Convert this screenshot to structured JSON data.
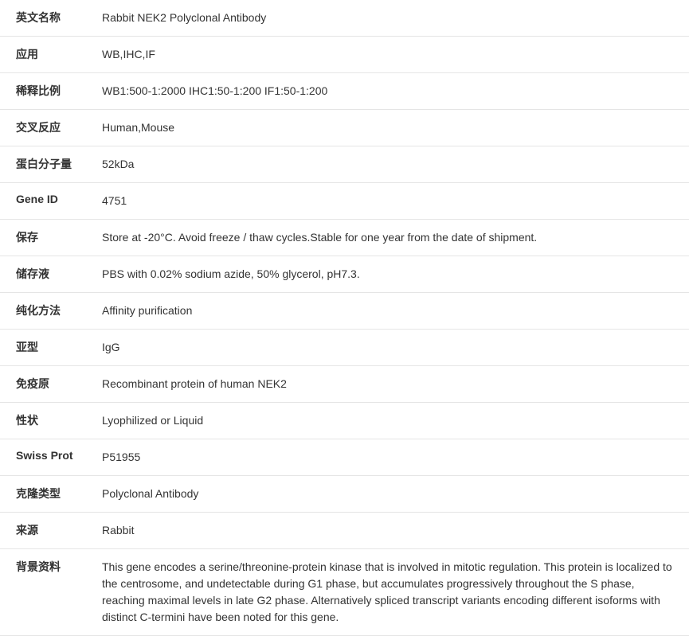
{
  "table": {
    "label_color": "#333333",
    "value_color": "#333333",
    "border_color": "#e5e5e5",
    "background_color": "#ffffff",
    "font_size": 14,
    "label_weight": "bold",
    "rows": [
      {
        "label": "英文名称",
        "value": "Rabbit NEK2 Polyclonal Antibody"
      },
      {
        "label": "应用",
        "value": "WB,IHC,IF"
      },
      {
        "label": "稀释比例",
        "value": "WB1:500-1:2000 IHC1:50-1:200 IF1:50-1:200"
      },
      {
        "label": "交叉反应",
        "value": "Human,Mouse"
      },
      {
        "label": "蛋白分子量",
        "value": "52kDa"
      },
      {
        "label": "Gene ID",
        "value": "4751"
      },
      {
        "label": "保存",
        "value": "Store at -20°C. Avoid freeze / thaw cycles.Stable for one year from the date of shipment."
      },
      {
        "label": "储存液",
        "value": "PBS with 0.02% sodium azide, 50% glycerol, pH7.3."
      },
      {
        "label": "纯化方法",
        "value": "Affinity purification"
      },
      {
        "label": "亚型",
        "value": "IgG"
      },
      {
        "label": "免疫原",
        "value": "Recombinant protein of human NEK2"
      },
      {
        "label": "性状",
        "value": "Lyophilized or Liquid"
      },
      {
        "label": "Swiss Prot",
        "value": "P51955"
      },
      {
        "label": "克隆类型",
        "value": "Polyclonal Antibody"
      },
      {
        "label": "来源",
        "value": "Rabbit"
      },
      {
        "label": "背景资料",
        "value": "This gene encodes a serine/threonine-protein kinase that is involved in mitotic regulation. This protein is localized to the centrosome, and undetectable during G1 phase, but accumulates progressively throughout the S phase, reaching maximal levels in late G2 phase. Alternatively spliced transcript variants encoding different isoforms with distinct C-termini have been noted for this gene."
      }
    ]
  }
}
